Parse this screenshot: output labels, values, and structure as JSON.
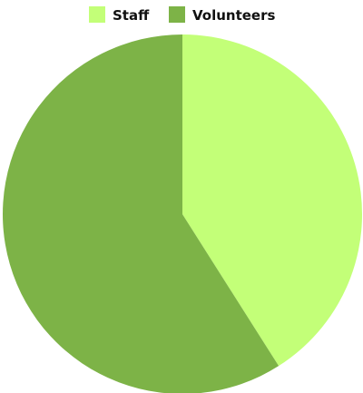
{
  "chart_data": {
    "type": "pie",
    "legend_position": "top",
    "start_angle_deg": -90,
    "direction": "clockwise",
    "slices": [
      {
        "label": "Staff",
        "value": 41,
        "color": "#c3ff78"
      },
      {
        "label": "Volunteers",
        "value": 59,
        "color": "#7db347"
      }
    ]
  }
}
